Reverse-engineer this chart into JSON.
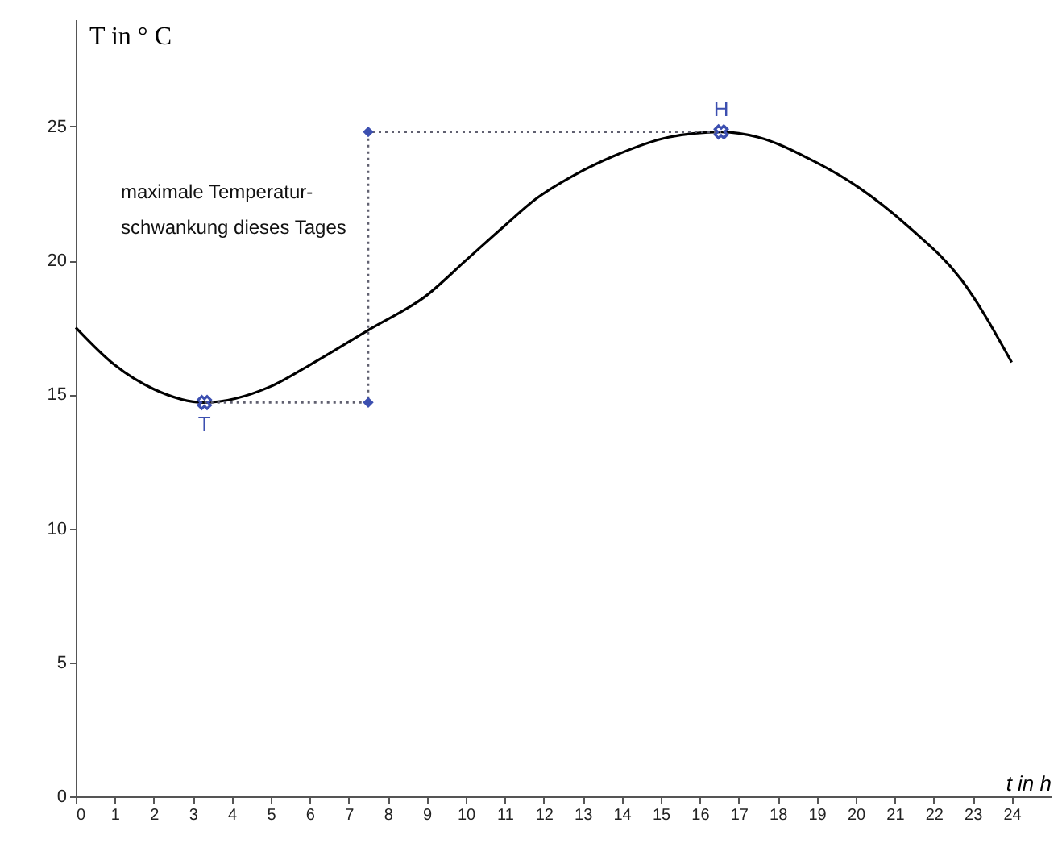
{
  "chart_data": {
    "type": "line",
    "xlabel": "t in h",
    "ylabel": "T in ° C",
    "xlim": [
      0,
      25
    ],
    "ylim": [
      0,
      29
    ],
    "xticks": [
      0,
      1,
      2,
      3,
      4,
      5,
      6,
      7,
      8,
      9,
      10,
      11,
      12,
      13,
      14,
      15,
      16,
      17,
      18,
      19,
      20,
      21,
      22,
      23,
      24
    ],
    "yticks": [
      0,
      5,
      10,
      15,
      20,
      25
    ],
    "grid": false,
    "series": [
      {
        "color": "#000000",
        "line_style": "solid",
        "marker": "none",
        "x": [
          0,
          1,
          2,
          3.3,
          5,
          6,
          7.5,
          9,
          10,
          11,
          11.8,
          12.8,
          13.8,
          15.2,
          16.55,
          17.5,
          18.8,
          20.1,
          21.4,
          22.7,
          24
        ],
        "values": [
          17.5,
          16.1,
          15.2,
          14.7,
          15.3,
          16.1,
          17.4,
          18.7,
          20.0,
          21.3,
          22.3,
          23.2,
          23.9,
          24.6,
          24.8,
          24.6,
          23.8,
          22.7,
          21.2,
          19.3,
          16.2
        ]
      },
      {
        "type": "line",
        "color": "#606070",
        "line_style": "dotted",
        "marker": "none",
        "x": [
          3.3,
          7.5,
          7.5,
          16.55
        ],
        "values": [
          14.7,
          14.7,
          24.8,
          24.8
        ]
      },
      {
        "type": "scatter",
        "color": "#3c4fb0",
        "marker": "diamond",
        "x": [
          7.5,
          7.5
        ],
        "values": [
          14.7,
          24.8
        ]
      },
      {
        "type": "scatter",
        "color": "#3c4fb0",
        "marker": "cross",
        "x": [
          3.3,
          16.55
        ],
        "values": [
          14.7,
          24.8
        ]
      }
    ],
    "annotations": [
      {
        "text": "T",
        "x": 3.3,
        "y": 14.7
      },
      {
        "text": "H",
        "x": 16.55,
        "y": 24.8
      },
      "maximale Temperatur-\nschwankung dieses Tages"
    ]
  }
}
